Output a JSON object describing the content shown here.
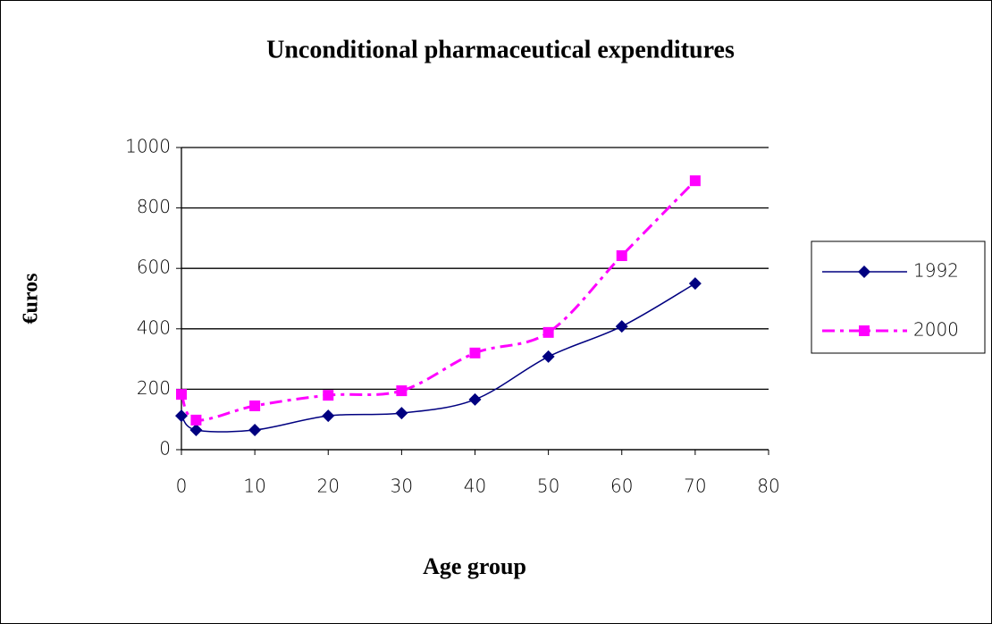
{
  "chart_data": {
    "type": "line",
    "title": "Unconditional pharmaceutical expenditures",
    "x_label": "Age group",
    "y_label": "€uros",
    "x": [
      0,
      2,
      10,
      20,
      30,
      40,
      50,
      60,
      70
    ],
    "series": [
      {
        "name": "1992",
        "color": "#000080",
        "marker": "diamond",
        "line_style": "solid",
        "values": [
          112,
          65,
          65,
          112,
          121,
          166,
          308,
          408,
          550
        ]
      },
      {
        "name": "2000",
        "color": "#ff00ff",
        "marker": "square",
        "line_style": "dashdot",
        "values": [
          183,
          98,
          145,
          180,
          195,
          320,
          388,
          642,
          890
        ]
      }
    ],
    "xlim": [
      0,
      80
    ],
    "xticks": [
      0,
      10,
      20,
      30,
      40,
      50,
      60,
      70,
      80
    ],
    "ylim": [
      0,
      1000
    ],
    "yticks": [
      0,
      200,
      400,
      600,
      800,
      1000
    ],
    "grid": true,
    "legend": "right"
  }
}
